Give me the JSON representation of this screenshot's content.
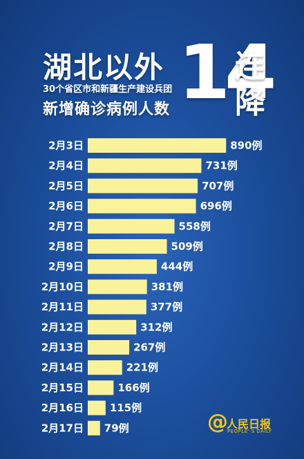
{
  "title": {
    "line1": "湖北以外",
    "line2": "30个省区市和新疆生产建设兵团",
    "line3": "新增确诊病例人数",
    "big_number": "14",
    "side_text_1": "连",
    "side_text_2": "降"
  },
  "logo": {
    "symbol": "@",
    "name": "人民日报",
    "sub": "PEOPLE' S DAILY"
  },
  "colors": {
    "bar": "#f9f29a",
    "background": "#1c4f9e",
    "text": "#ffffff",
    "logo": "#f5c518"
  },
  "chart_data": {
    "type": "bar",
    "orientation": "horizontal",
    "categories": [
      "2月3日",
      "2月4日",
      "2月5日",
      "2月6日",
      "2月7日",
      "2月8日",
      "2月9日",
      "2月10日",
      "2月11日",
      "2月12日",
      "2月13日",
      "2月14日",
      "2月15日",
      "2月16日",
      "2月17日"
    ],
    "values": [
      890,
      731,
      707,
      696,
      558,
      509,
      444,
      381,
      377,
      312,
      267,
      221,
      166,
      115,
      79
    ],
    "value_labels": [
      "890例",
      "731例",
      "707例",
      "696例",
      "558例",
      "509例",
      "444例",
      "381例",
      "377例",
      "312例",
      "267例",
      "221例",
      "166例",
      "115例",
      "79例"
    ],
    "grid": false,
    "legend": "none"
  }
}
